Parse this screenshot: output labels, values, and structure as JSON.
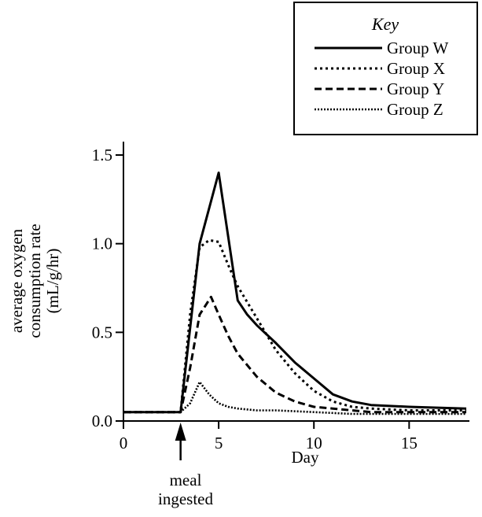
{
  "chart_data": {
    "type": "line",
    "xlabel": "Day",
    "ylabel": [
      "average oxygen",
      "consumption rate",
      "(mL/g/hr)"
    ],
    "xlim": [
      0,
      18
    ],
    "ylim": [
      0,
      1.5
    ],
    "xticks": [
      0,
      5,
      10,
      15
    ],
    "yticks": [
      0.0,
      0.5,
      1.0,
      1.5
    ],
    "x_tick_labels": [
      "0",
      "5",
      "10",
      "15"
    ],
    "y_tick_labels": [
      "0.0",
      "0.5",
      "1.0",
      "1.5"
    ],
    "grid": false,
    "legend": {
      "title": "Key",
      "placement": "top-right",
      "entries": [
        "Group W",
        "Group X",
        "Group Y",
        "Group Z"
      ]
    },
    "annotation": {
      "lines": [
        "meal",
        "ingested"
      ],
      "x": 3,
      "marker": "up-arrow"
    },
    "series": [
      {
        "name": "Group W",
        "line_style": "solid",
        "x": [
          0,
          3,
          4,
          5,
          6,
          6.5,
          7,
          8,
          9,
          10,
          11,
          12,
          13,
          15,
          18
        ],
        "y": [
          0.05,
          0.05,
          1.0,
          1.4,
          0.68,
          0.6,
          0.54,
          0.44,
          0.33,
          0.24,
          0.15,
          0.11,
          0.09,
          0.08,
          0.07
        ]
      },
      {
        "name": "Group X",
        "line_style": "dotted",
        "x": [
          0,
          3,
          3.5,
          4,
          4.5,
          5,
          5.5,
          6,
          7,
          8,
          9,
          10,
          11,
          12,
          13,
          15,
          18
        ],
        "y": [
          0.05,
          0.05,
          0.6,
          0.98,
          1.02,
          1.01,
          0.88,
          0.76,
          0.58,
          0.4,
          0.27,
          0.17,
          0.11,
          0.08,
          0.07,
          0.06,
          0.06
        ]
      },
      {
        "name": "Group Y",
        "line_style": "dashed",
        "x": [
          0,
          3,
          3.5,
          4,
          4.6,
          5,
          5.5,
          6,
          7,
          8,
          9,
          10,
          11,
          12,
          13,
          15,
          18
        ],
        "y": [
          0.05,
          0.05,
          0.3,
          0.6,
          0.7,
          0.6,
          0.48,
          0.38,
          0.25,
          0.16,
          0.11,
          0.08,
          0.07,
          0.06,
          0.05,
          0.05,
          0.05
        ]
      },
      {
        "name": "Group Z",
        "line_style": "fine-dotted",
        "x": [
          0,
          3,
          3.5,
          4,
          4.5,
          5,
          5.5,
          6,
          7,
          8,
          10,
          12,
          15,
          18
        ],
        "y": [
          0.05,
          0.05,
          0.1,
          0.22,
          0.15,
          0.1,
          0.08,
          0.07,
          0.06,
          0.06,
          0.05,
          0.04,
          0.04,
          0.04
        ]
      }
    ]
  }
}
